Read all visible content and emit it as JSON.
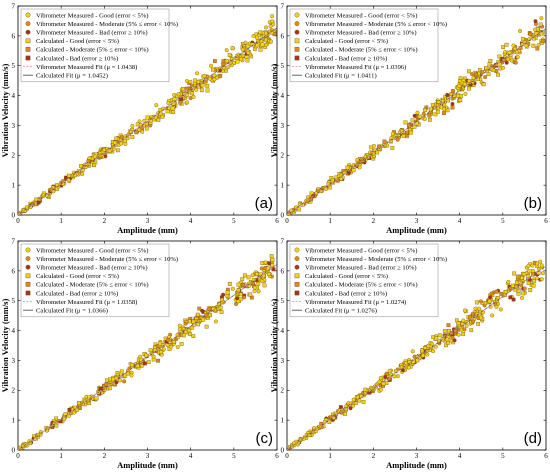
{
  "figure": {
    "legend_entries": [
      {
        "label": "Vibrometer Measured - Good (error < 5%)",
        "kind": "marker",
        "shape": "circle",
        "color": "#f2d21a"
      },
      {
        "label": "Vibrometer Measured - Moderate (5% ≤ error < 10%)",
        "kind": "marker",
        "shape": "circle",
        "color": "#e08a1e"
      },
      {
        "label": "Vibrometer Measured - Bad (error ≥ 10%)",
        "kind": "marker",
        "shape": "circle",
        "color": "#a83220"
      },
      {
        "label": "Calculated - Good (error < 5%)",
        "kind": "marker",
        "shape": "square",
        "color": "#f2d21a"
      },
      {
        "label": "Calculated - Moderate (5% ≤ error < 10%)",
        "kind": "marker",
        "shape": "square",
        "color": "#e08a1e"
      },
      {
        "label": "Calculated - Bad (error ≥ 10%)",
        "kind": "marker",
        "shape": "square",
        "color": "#a83220"
      },
      {
        "label": "Vibrometer Measured Fit (μ = ",
        "kind": "dashed",
        "color": "#e89a9a"
      },
      {
        "label": "Calculated Fit (μ = ",
        "kind": "solid",
        "color": "#555555"
      }
    ]
  },
  "chart_data": [
    {
      "type": "scatter",
      "panel_label": "(a)",
      "xlabel": "Amplitude (mm)",
      "ylabel": "Vibration Velocity (mm/s)",
      "xlim": [
        0,
        6
      ],
      "ylim": [
        0,
        7
      ],
      "xticks": [
        "0",
        "1",
        "2",
        "3",
        "4",
        "5",
        "6"
      ],
      "yticks": [
        "0",
        "1",
        "2",
        "3",
        "4",
        "5",
        "6",
        "7"
      ],
      "grid": false,
      "legend_position": "top-left",
      "measured_fit_slope": 1.0438,
      "calculated_fit_slope": 1.0452,
      "legend_values": {
        "measured": "1.0438",
        "calculated": "1.0452"
      }
    },
    {
      "type": "scatter",
      "panel_label": "(b)",
      "xlabel": "Amplitude (mm)",
      "ylabel": "Vibration Velocity (mm/s)",
      "xlim": [
        0,
        6
      ],
      "ylim": [
        0,
        7
      ],
      "xticks": [
        "0",
        "1",
        "2",
        "3",
        "4",
        "5",
        "6"
      ],
      "yticks": [
        "0",
        "1",
        "2",
        "3",
        "4",
        "5",
        "6",
        "7"
      ],
      "grid": false,
      "legend_position": "top-left",
      "measured_fit_slope": 1.0396,
      "calculated_fit_slope": 1.0411,
      "legend_values": {
        "measured": "1.0396",
        "calculated": "1.0411"
      }
    },
    {
      "type": "scatter",
      "panel_label": "(c)",
      "xlabel": "Amplitude (mm)",
      "ylabel": "Vibration Velocity (mm/s)",
      "xlim": [
        0,
        6
      ],
      "ylim": [
        0,
        7
      ],
      "xticks": [
        "0",
        "1",
        "2",
        "3",
        "4",
        "5",
        "6"
      ],
      "yticks": [
        "0",
        "1",
        "2",
        "3",
        "4",
        "5",
        "6",
        "7"
      ],
      "grid": false,
      "legend_position": "top-left",
      "measured_fit_slope": 1.0358,
      "calculated_fit_slope": 1.0366,
      "legend_values": {
        "measured": "1.0358",
        "calculated": "1.0366"
      }
    },
    {
      "type": "scatter",
      "panel_label": "(d)",
      "xlabel": "Amplitude (mm)",
      "ylabel": "Vibration Velocity (mm/s)",
      "xlim": [
        0,
        6
      ],
      "ylim": [
        0,
        7
      ],
      "xticks": [
        "0",
        "1",
        "2",
        "3",
        "4",
        "5",
        "6"
      ],
      "yticks": [
        "0",
        "1",
        "2",
        "3",
        "4",
        "5",
        "6",
        "7"
      ],
      "grid": false,
      "legend_position": "top-left",
      "measured_fit_slope": 1.0274,
      "calculated_fit_slope": 1.0276,
      "legend_values": {
        "measured": "1.0274",
        "calculated": "1.0276"
      }
    }
  ]
}
